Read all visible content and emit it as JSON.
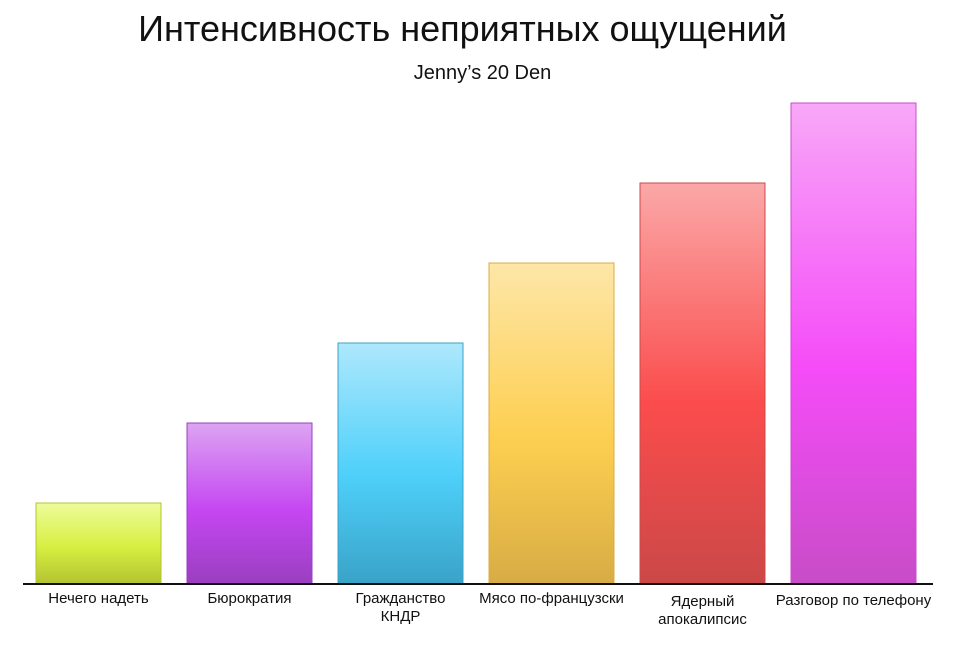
{
  "title": "Интенсивность неприятных ощущений",
  "subtitle": "Jenny’s 20 Den",
  "chart_data": {
    "type": "bar",
    "title": "Интенсивность неприятных ощущений",
    "subtitle": "Jenny’s 20 Den",
    "xlabel": "",
    "ylabel": "",
    "categories": [
      "Нечего надеть",
      "Бюрократия",
      "Гражданство КНДР",
      "Мясо по-французски",
      "Ядерный апокалипсис",
      "Разговор по телефону"
    ],
    "values": [
      1,
      2,
      3,
      4,
      5,
      6
    ],
    "ylim": [
      0,
      6
    ],
    "grid": false,
    "legend": "none",
    "colors": [
      [
        "#eefc9c",
        "#d6ef40",
        "#b4c432"
      ],
      [
        "#dca4f2",
        "#c546f2",
        "#9a3fc0"
      ],
      [
        "#aee8fc",
        "#4ed0fa",
        "#3aa3c8"
      ],
      [
        "#fde6a8",
        "#fdcf50",
        "#d8ac45"
      ],
      [
        "#fba8a8",
        "#fb4c4c",
        "#cc4848"
      ],
      [
        "#f8a8f8",
        "#f54cf8",
        "#c84cc8"
      ]
    ]
  }
}
